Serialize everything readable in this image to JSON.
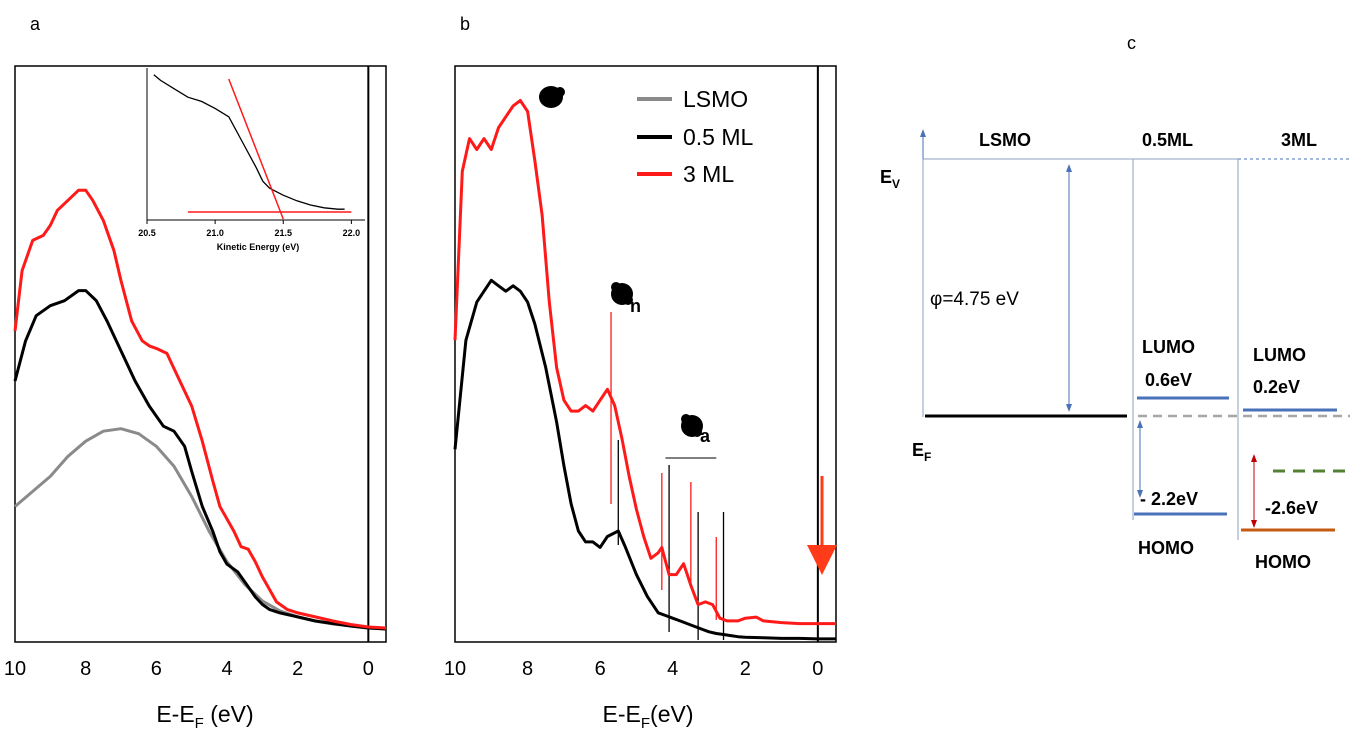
{
  "panels": {
    "a": "a",
    "b": "b",
    "c": "c"
  },
  "colors": {
    "lsmo": "#8a8a8a",
    "ml05": "#000000",
    "ml3": "#ff1a1a",
    "arrow_blue": "#4a72b8",
    "arrow_red": "#c00000",
    "level_blue": "#4a72b8",
    "level_orange": "#c55a11",
    "level_green": "#548235",
    "level_gray": "#a6a6a6"
  },
  "chart_data": [
    {
      "type": "line",
      "panel": "a",
      "xlabel_main": "E-E",
      "xlabel_sub": "F",
      "xlabel_tail": " (eV)",
      "xlim": [
        10,
        -0.5
      ],
      "x_ticks": [
        "10",
        "8",
        "6",
        "4",
        "2",
        "0"
      ],
      "vline_x": 0,
      "series": [
        {
          "key": "lsmo",
          "x": [
            10,
            9.5,
            9,
            8.5,
            8,
            7.5,
            7,
            6.5,
            6,
            5.5,
            5,
            4.5,
            4,
            3.5,
            3,
            2.5,
            2,
            1.5,
            1,
            0.5,
            0,
            -0.5
          ],
          "y": [
            0.25,
            0.28,
            0.31,
            0.35,
            0.38,
            0.4,
            0.405,
            0.395,
            0.37,
            0.33,
            0.27,
            0.2,
            0.14,
            0.095,
            0.062,
            0.042,
            0.03,
            0.022,
            0.016,
            0.012,
            0.008,
            0.006
          ]
        },
        {
          "key": "ml05",
          "x": [
            10,
            9.7,
            9.4,
            9,
            8.6,
            8.2,
            8,
            7.7,
            7.4,
            7,
            6.6,
            6.2,
            5.8,
            5.5,
            5.2,
            5,
            4.7,
            4.4,
            4.2,
            4,
            3.7,
            3.4,
            3.2,
            3,
            2.8,
            2.5,
            2,
            1.5,
            1,
            0.5,
            0,
            -0.5
          ],
          "y": [
            0.5,
            0.58,
            0.63,
            0.65,
            0.66,
            0.68,
            0.68,
            0.66,
            0.62,
            0.56,
            0.5,
            0.45,
            0.41,
            0.4,
            0.37,
            0.32,
            0.25,
            0.2,
            0.16,
            0.135,
            0.12,
            0.09,
            0.07,
            0.055,
            0.045,
            0.038,
            0.03,
            0.022,
            0.017,
            0.012,
            0.008,
            0.006
          ]
        },
        {
          "key": "ml3",
          "x": [
            10,
            9.8,
            9.5,
            9.2,
            9,
            8.8,
            8.5,
            8.2,
            8,
            7.8,
            7.5,
            7.2,
            7,
            6.7,
            6.4,
            6.2,
            6,
            5.7,
            5.4,
            5,
            4.7,
            4.4,
            4.2,
            4,
            3.8,
            3.6,
            3.4,
            3.2,
            3,
            2.8,
            2.6,
            2.3,
            2,
            1.5,
            1,
            0.5,
            0,
            -0.5
          ],
          "y": [
            0.6,
            0.72,
            0.78,
            0.79,
            0.81,
            0.84,
            0.86,
            0.88,
            0.88,
            0.86,
            0.82,
            0.76,
            0.7,
            0.62,
            0.58,
            0.57,
            0.565,
            0.555,
            0.51,
            0.45,
            0.38,
            0.3,
            0.25,
            0.225,
            0.2,
            0.17,
            0.165,
            0.14,
            0.11,
            0.085,
            0.06,
            0.045,
            0.038,
            0.03,
            0.022,
            0.015,
            0.01,
            0.008
          ]
        }
      ],
      "inset": {
        "xlabel": "Kinetic Energy (eV)",
        "x_ticks": [
          "20.5",
          "21.0",
          "21.5",
          "22.0"
        ],
        "xlim": [
          20.5,
          22.1
        ],
        "ylim": [
          0,
          1
        ],
        "series": {
          "x": [
            20.55,
            20.6,
            20.7,
            20.8,
            20.9,
            21.0,
            21.1,
            21.2,
            21.3,
            21.35,
            21.4,
            21.5,
            21.6,
            21.7,
            21.8,
            21.9,
            21.95
          ],
          "y": [
            0.98,
            0.94,
            0.88,
            0.82,
            0.79,
            0.74,
            0.68,
            0.5,
            0.32,
            0.22,
            0.17,
            0.12,
            0.08,
            0.05,
            0.03,
            0.02,
            0.02
          ]
        },
        "tangent": {
          "x": [
            21.1,
            21.5
          ],
          "y": [
            0.95,
            -0.05
          ]
        },
        "baseline": {
          "x": [
            20.8,
            22.0
          ],
          "y": [
            0.0,
            0.0
          ]
        }
      }
    },
    {
      "type": "line",
      "panel": "b",
      "xlabel_main": "E-E",
      "xlabel_sub": "F",
      "xlabel_tail": "(eV)",
      "xlim": [
        10,
        -0.5
      ],
      "x_ticks": [
        "10",
        "8",
        "6",
        "4",
        "2",
        "0"
      ],
      "vline_x": 0,
      "legend": [
        {
          "key": "lsmo",
          "label": "LSMO"
        },
        {
          "key": "ml05",
          "label": "0.5 ML"
        },
        {
          "key": "ml3",
          "label": "3 ML"
        }
      ],
      "series": [
        {
          "key": "ml05",
          "x": [
            10,
            9.7,
            9.4,
            9.2,
            9,
            8.8,
            8.6,
            8.4,
            8.2,
            8,
            7.8,
            7.5,
            7.2,
            7,
            6.8,
            6.6,
            6.4,
            6.2,
            6,
            5.8,
            5.5,
            5.3,
            5,
            4.7,
            4.4,
            4.2,
            4,
            3.8,
            3.6,
            3.4,
            3.2,
            3,
            2.8,
            2.6,
            2.4,
            2.2,
            2,
            1.5,
            1,
            0.5,
            0,
            -0.5
          ],
          "y": [
            0.35,
            0.55,
            0.62,
            0.64,
            0.66,
            0.65,
            0.64,
            0.65,
            0.64,
            0.62,
            0.58,
            0.5,
            0.4,
            0.32,
            0.25,
            0.2,
            0.18,
            0.18,
            0.17,
            0.19,
            0.2,
            0.17,
            0.12,
            0.08,
            0.05,
            0.045,
            0.04,
            0.035,
            0.03,
            0.025,
            0.02,
            0.015,
            0.012,
            0.01,
            0.008,
            0.006,
            0.005,
            0.004,
            0.003,
            0.003,
            0.002,
            0.002
          ]
        },
        {
          "key": "ml3",
          "x": [
            10,
            9.8,
            9.6,
            9.4,
            9.2,
            9,
            8.8,
            8.6,
            8.4,
            8.2,
            8,
            7.8,
            7.6,
            7.4,
            7.2,
            7,
            6.8,
            6.6,
            6.4,
            6.2,
            6,
            5.8,
            5.6,
            5.4,
            5.2,
            5,
            4.8,
            4.6,
            4.4,
            4.3,
            4.1,
            3.9,
            3.7,
            3.5,
            3.3,
            3.1,
            2.9,
            2.7,
            2.5,
            2.2,
            2,
            1.7,
            1.5,
            1,
            0.5,
            0,
            -0.5
          ],
          "y": [
            0.55,
            0.86,
            0.92,
            0.9,
            0.92,
            0.9,
            0.94,
            0.96,
            0.98,
            0.99,
            0.97,
            0.88,
            0.78,
            0.62,
            0.5,
            0.44,
            0.42,
            0.42,
            0.43,
            0.42,
            0.44,
            0.46,
            0.43,
            0.37,
            0.3,
            0.24,
            0.19,
            0.15,
            0.16,
            0.17,
            0.12,
            0.12,
            0.14,
            0.1,
            0.065,
            0.07,
            0.065,
            0.04,
            0.035,
            0.035,
            0.04,
            0.042,
            0.035,
            0.032,
            0.03,
            0.03,
            0.03
          ]
        }
      ],
      "annotations": {
        "label_n": "n",
        "label_a": "a",
        "red_lines_x": [
          5.7,
          4.3,
          3.5,
          2.8
        ],
        "black_lines_x": [
          5.5,
          4.1,
          3.3,
          2.6
        ],
        "bracket_x": [
          4.2,
          2.8
        ],
        "bracket_y": 0.2
      }
    }
  ],
  "diagram": {
    "headers": {
      "lsmo": "LSMO",
      "ml05": "0.5ML",
      "ml3": "3ML"
    },
    "ev_main": "E",
    "ev_sub": "V",
    "ef_main": "E",
    "ef_sub": "F",
    "workfunction": "φ=4.75 eV",
    "lumo_05": "LUMO",
    "lumo_05_val": "0.6eV",
    "lumo_3": "LUMO",
    "lumo_3_val": "0.2eV",
    "homo_05_val": "- 2.2eV",
    "homo_05": "HOMO",
    "homo_3_val": "-2.6eV",
    "homo_3": "HOMO"
  }
}
